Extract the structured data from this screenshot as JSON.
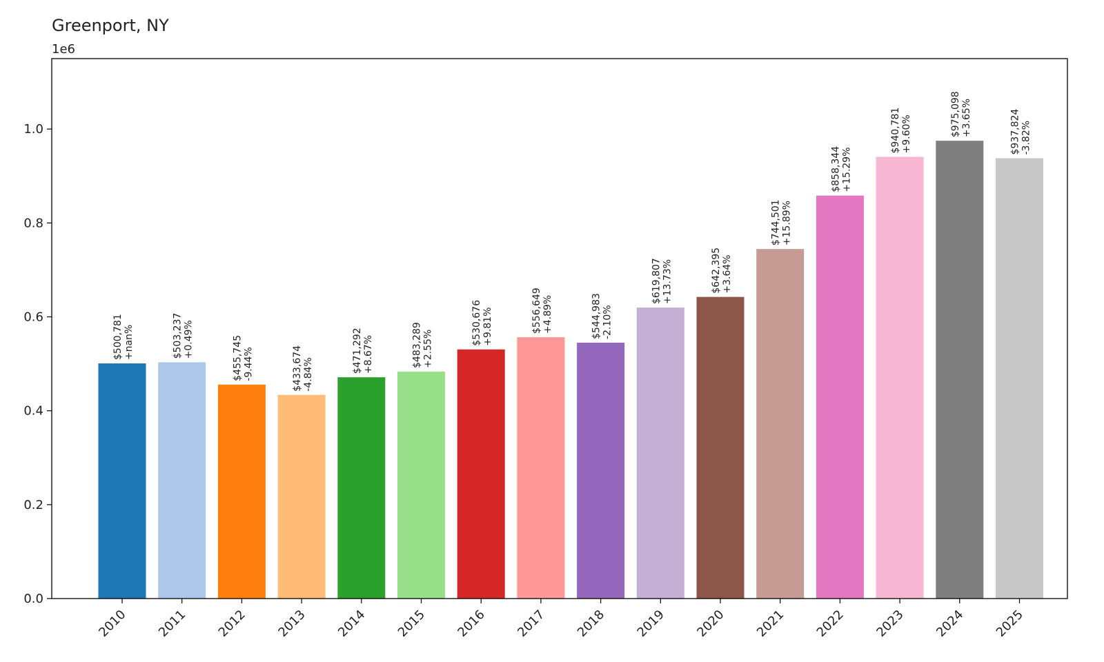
{
  "chart_data": {
    "type": "bar",
    "title": "Greenport, NY",
    "y_offset_label": "1e6",
    "xlabel": "",
    "ylabel": "",
    "ylim": [
      0,
      1150000
    ],
    "yticks": [
      0.0,
      0.2,
      0.4,
      0.6,
      0.8,
      1.0
    ],
    "ytick_labels": [
      "0.0",
      "0.2",
      "0.4",
      "0.6",
      "0.8",
      "1.0"
    ],
    "y_scale": 1000000,
    "categories": [
      "2010",
      "2011",
      "2012",
      "2013",
      "2014",
      "2015",
      "2016",
      "2017",
      "2018",
      "2019",
      "2020",
      "2021",
      "2022",
      "2023",
      "2024",
      "2025"
    ],
    "values": [
      500781,
      503237,
      455745,
      433674,
      471292,
      483289,
      530676,
      556649,
      544983,
      619807,
      642395,
      744501,
      858344,
      940781,
      975098,
      937824
    ],
    "value_labels": [
      "$500,781",
      "$503,237",
      "$455,745",
      "$433,674",
      "$471,292",
      "$483,289",
      "$530,676",
      "$556,649",
      "$544,983",
      "$619,807",
      "$642,395",
      "$744,501",
      "$858,344",
      "$940,781",
      "$975,098",
      "$937,824"
    ],
    "change_labels": [
      "+nan%",
      "+0.49%",
      "-9.44%",
      "-4.84%",
      "+8.67%",
      "+2.55%",
      "+9.81%",
      "+4.89%",
      "-2.10%",
      "+13.73%",
      "+3.64%",
      "+15.89%",
      "+15.29%",
      "+9.60%",
      "+3.65%",
      "-3.82%"
    ],
    "colors": [
      "#1f77b4",
      "#aec7e8",
      "#ff7f0e",
      "#ffbb78",
      "#2ca02c",
      "#98df8a",
      "#d62728",
      "#ff9896",
      "#9467bd",
      "#c5b0d5",
      "#8c564b",
      "#c49c94",
      "#e377c2",
      "#f7b6d2",
      "#7f7f7f",
      "#c7c7c7"
    ],
    "grid": false,
    "legend": "none"
  }
}
